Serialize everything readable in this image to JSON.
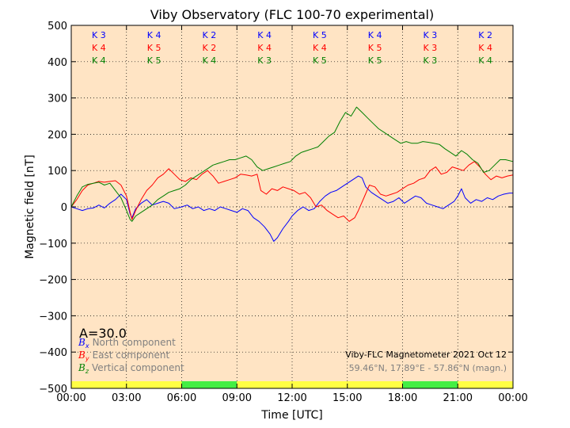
{
  "chart_data": {
    "type": "line",
    "title": "Viby Observatory (FLC 100-70 experimental)",
    "xlabel": "Time [UTC]",
    "ylabel": "Magnetic field [nT]",
    "xlim": [
      0,
      24
    ],
    "ylim": [
      -500,
      500
    ],
    "grid": true,
    "background": "#ffe4c4",
    "x_ticks": [
      {
        "v": 0,
        "label": "00:00"
      },
      {
        "v": 3,
        "label": "03:00"
      },
      {
        "v": 6,
        "label": "06:00"
      },
      {
        "v": 9,
        "label": "09:00"
      },
      {
        "v": 12,
        "label": "12:00"
      },
      {
        "v": 15,
        "label": "15:00"
      },
      {
        "v": 18,
        "label": "18:00"
      },
      {
        "v": 21,
        "label": "21:00"
      },
      {
        "v": 24,
        "label": "00:00"
      }
    ],
    "y_ticks": [
      {
        "v": 500,
        "label": "500"
      },
      {
        "v": 400,
        "label": "400"
      },
      {
        "v": 300,
        "label": "300"
      },
      {
        "v": 200,
        "label": "200"
      },
      {
        "v": 100,
        "label": "100"
      },
      {
        "v": 0,
        "label": "0"
      },
      {
        "v": -100,
        "label": "−100"
      },
      {
        "v": -200,
        "label": "−200"
      },
      {
        "v": -300,
        "label": "−300"
      },
      {
        "v": -400,
        "label": "−400"
      },
      {
        "v": -500,
        "label": "−500"
      }
    ],
    "k_index": {
      "rows": [
        {
          "color": "#0000ff",
          "labels": [
            "K 3",
            "K 4",
            "K 2",
            "K 4",
            "K 5",
            "K 4",
            "K 3",
            "K 2"
          ]
        },
        {
          "color": "#ff0000",
          "labels": [
            "K 4",
            "K 5",
            "K 2",
            "K 4",
            "K 4",
            "K 5",
            "K 3",
            "K 4"
          ]
        },
        {
          "color": "#008000",
          "labels": [
            "K 4",
            "K 5",
            "K 4",
            "K 3",
            "K 5",
            "K 5",
            "K 3",
            "K 4"
          ]
        }
      ]
    },
    "a_index": "A=30.0",
    "legend": {
      "placement": "lower-left",
      "items": [
        {
          "symbol": "B",
          "sub": "x",
          "text": "North component",
          "color": "#0000ff"
        },
        {
          "symbol": "B",
          "sub": "y",
          "text": "East component",
          "color": "#ff0000"
        },
        {
          "symbol": "B",
          "sub": "z",
          "text": "Vertical component",
          "color": "#008000"
        }
      ]
    },
    "info": {
      "line1": "Viby-FLC Magnetometer 2021 Oct 12",
      "line2": "59.46°N, 17.89°E - 57.86°N (magn.)"
    },
    "activity_bar": [
      {
        "from": 0,
        "to": 6,
        "color": "#ffff44"
      },
      {
        "from": 6,
        "to": 9,
        "color": "#44ee44"
      },
      {
        "from": 9,
        "to": 18,
        "color": "#ffff44"
      },
      {
        "from": 18,
        "to": 21,
        "color": "#44ee44"
      },
      {
        "from": 21,
        "to": 24,
        "color": "#ffff44"
      }
    ],
    "series": [
      {
        "name": "Bx North component",
        "color": "#0000ff",
        "points": [
          [
            0,
            0
          ],
          [
            0.3,
            -5
          ],
          [
            0.6,
            -10
          ],
          [
            0.9,
            -5
          ],
          [
            1.2,
            -3
          ],
          [
            1.5,
            5
          ],
          [
            1.8,
            -3
          ],
          [
            2.1,
            10
          ],
          [
            2.4,
            20
          ],
          [
            2.7,
            35
          ],
          [
            3,
            20
          ],
          [
            3.2,
            -20
          ],
          [
            3.3,
            -30
          ],
          [
            3.5,
            -5
          ],
          [
            3.8,
            10
          ],
          [
            4.1,
            20
          ],
          [
            4.4,
            5
          ],
          [
            4.7,
            10
          ],
          [
            5,
            15
          ],
          [
            5.3,
            10
          ],
          [
            5.6,
            -5
          ],
          [
            6,
            0
          ],
          [
            6.3,
            5
          ],
          [
            6.6,
            -5
          ],
          [
            6.9,
            0
          ],
          [
            7.2,
            -10
          ],
          [
            7.5,
            -5
          ],
          [
            7.8,
            -10
          ],
          [
            8.1,
            0
          ],
          [
            8.4,
            -5
          ],
          [
            8.7,
            -10
          ],
          [
            9,
            -15
          ],
          [
            9.3,
            -5
          ],
          [
            9.6,
            -10
          ],
          [
            9.9,
            -30
          ],
          [
            10.2,
            -40
          ],
          [
            10.5,
            -55
          ],
          [
            10.8,
            -75
          ],
          [
            11,
            -95
          ],
          [
            11.2,
            -85
          ],
          [
            11.5,
            -60
          ],
          [
            11.8,
            -40
          ],
          [
            12,
            -25
          ],
          [
            12.3,
            -10
          ],
          [
            12.6,
            0
          ],
          [
            12.9,
            -10
          ],
          [
            13.2,
            -5
          ],
          [
            13.5,
            15
          ],
          [
            13.8,
            30
          ],
          [
            14.1,
            40
          ],
          [
            14.4,
            45
          ],
          [
            14.7,
            55
          ],
          [
            15,
            65
          ],
          [
            15.3,
            75
          ],
          [
            15.6,
            85
          ],
          [
            15.8,
            80
          ],
          [
            16,
            55
          ],
          [
            16.3,
            40
          ],
          [
            16.6,
            30
          ],
          [
            16.9,
            20
          ],
          [
            17.2,
            10
          ],
          [
            17.5,
            15
          ],
          [
            17.8,
            25
          ],
          [
            18.1,
            10
          ],
          [
            18.4,
            20
          ],
          [
            18.7,
            30
          ],
          [
            19,
            25
          ],
          [
            19.3,
            10
          ],
          [
            19.6,
            5
          ],
          [
            19.9,
            0
          ],
          [
            20.2,
            -5
          ],
          [
            20.5,
            5
          ],
          [
            20.8,
            15
          ],
          [
            21,
            30
          ],
          [
            21.2,
            50
          ],
          [
            21.4,
            25
          ],
          [
            21.7,
            10
          ],
          [
            22,
            20
          ],
          [
            22.3,
            15
          ],
          [
            22.6,
            25
          ],
          [
            22.9,
            20
          ],
          [
            23.2,
            30
          ],
          [
            23.5,
            35
          ],
          [
            23.8,
            38
          ],
          [
            24,
            38
          ]
        ]
      },
      {
        "name": "By East component",
        "color": "#ff0000",
        "points": [
          [
            0,
            0
          ],
          [
            0.3,
            20
          ],
          [
            0.6,
            45
          ],
          [
            0.9,
            60
          ],
          [
            1.2,
            65
          ],
          [
            1.5,
            70
          ],
          [
            1.8,
            68
          ],
          [
            2.1,
            70
          ],
          [
            2.4,
            72
          ],
          [
            2.7,
            60
          ],
          [
            3,
            30
          ],
          [
            3.2,
            -15
          ],
          [
            3.3,
            -35
          ],
          [
            3.5,
            -10
          ],
          [
            3.8,
            20
          ],
          [
            4.1,
            45
          ],
          [
            4.4,
            60
          ],
          [
            4.7,
            80
          ],
          [
            5,
            90
          ],
          [
            5.3,
            105
          ],
          [
            5.6,
            90
          ],
          [
            5.9,
            75
          ],
          [
            6.2,
            70
          ],
          [
            6.5,
            80
          ],
          [
            6.8,
            75
          ],
          [
            7.1,
            90
          ],
          [
            7.4,
            100
          ],
          [
            7.7,
            85
          ],
          [
            8,
            65
          ],
          [
            8.3,
            70
          ],
          [
            8.6,
            75
          ],
          [
            8.9,
            80
          ],
          [
            9.2,
            90
          ],
          [
            9.5,
            88
          ],
          [
            9.8,
            85
          ],
          [
            10.1,
            90
          ],
          [
            10.3,
            45
          ],
          [
            10.6,
            35
          ],
          [
            10.9,
            50
          ],
          [
            11.2,
            45
          ],
          [
            11.5,
            55
          ],
          [
            11.8,
            50
          ],
          [
            12.1,
            45
          ],
          [
            12.4,
            35
          ],
          [
            12.7,
            40
          ],
          [
            13,
            25
          ],
          [
            13.3,
            0
          ],
          [
            13.6,
            5
          ],
          [
            13.9,
            -10
          ],
          [
            14.2,
            -20
          ],
          [
            14.5,
            -30
          ],
          [
            14.8,
            -25
          ],
          [
            15.1,
            -40
          ],
          [
            15.4,
            -30
          ],
          [
            15.6,
            -10
          ],
          [
            15.9,
            25
          ],
          [
            16.2,
            60
          ],
          [
            16.5,
            55
          ],
          [
            16.8,
            35
          ],
          [
            17.1,
            30
          ],
          [
            17.4,
            35
          ],
          [
            17.7,
            40
          ],
          [
            18,
            50
          ],
          [
            18.3,
            60
          ],
          [
            18.6,
            65
          ],
          [
            18.9,
            75
          ],
          [
            19.2,
            80
          ],
          [
            19.5,
            100
          ],
          [
            19.8,
            110
          ],
          [
            20.1,
            90
          ],
          [
            20.4,
            95
          ],
          [
            20.7,
            110
          ],
          [
            21,
            105
          ],
          [
            21.3,
            100
          ],
          [
            21.6,
            115
          ],
          [
            21.9,
            125
          ],
          [
            22.2,
            110
          ],
          [
            22.5,
            90
          ],
          [
            22.8,
            75
          ],
          [
            23.1,
            85
          ],
          [
            23.4,
            80
          ],
          [
            23.7,
            85
          ],
          [
            24,
            88
          ]
        ]
      },
      {
        "name": "Bz Vertical component",
        "color": "#008000",
        "points": [
          [
            0,
            0
          ],
          [
            0.3,
            30
          ],
          [
            0.6,
            55
          ],
          [
            0.9,
            62
          ],
          [
            1.2,
            65
          ],
          [
            1.5,
            68
          ],
          [
            1.8,
            60
          ],
          [
            2.1,
            65
          ],
          [
            2.4,
            45
          ],
          [
            2.7,
            25
          ],
          [
            3,
            -10
          ],
          [
            3.2,
            -35
          ],
          [
            3.3,
            -40
          ],
          [
            3.5,
            -25
          ],
          [
            3.8,
            -15
          ],
          [
            4.1,
            -5
          ],
          [
            4.4,
            5
          ],
          [
            4.7,
            20
          ],
          [
            5,
            30
          ],
          [
            5.3,
            40
          ],
          [
            5.6,
            45
          ],
          [
            5.9,
            50
          ],
          [
            6.2,
            60
          ],
          [
            6.5,
            75
          ],
          [
            6.8,
            85
          ],
          [
            7.1,
            95
          ],
          [
            7.4,
            105
          ],
          [
            7.7,
            115
          ],
          [
            8,
            120
          ],
          [
            8.3,
            125
          ],
          [
            8.6,
            130
          ],
          [
            8.9,
            130
          ],
          [
            9.2,
            135
          ],
          [
            9.5,
            140
          ],
          [
            9.8,
            130
          ],
          [
            10.1,
            110
          ],
          [
            10.4,
            100
          ],
          [
            10.7,
            105
          ],
          [
            11,
            110
          ],
          [
            11.3,
            115
          ],
          [
            11.6,
            120
          ],
          [
            11.9,
            125
          ],
          [
            12.2,
            140
          ],
          [
            12.5,
            150
          ],
          [
            12.8,
            155
          ],
          [
            13.1,
            160
          ],
          [
            13.4,
            165
          ],
          [
            13.7,
            180
          ],
          [
            14,
            195
          ],
          [
            14.3,
            205
          ],
          [
            14.6,
            235
          ],
          [
            14.9,
            260
          ],
          [
            15.2,
            250
          ],
          [
            15.5,
            275
          ],
          [
            15.8,
            260
          ],
          [
            16.1,
            245
          ],
          [
            16.4,
            230
          ],
          [
            16.7,
            215
          ],
          [
            17,
            205
          ],
          [
            17.3,
            195
          ],
          [
            17.6,
            185
          ],
          [
            17.9,
            175
          ],
          [
            18.2,
            180
          ],
          [
            18.5,
            175
          ],
          [
            18.8,
            175
          ],
          [
            19.1,
            180
          ],
          [
            19.4,
            178
          ],
          [
            19.7,
            175
          ],
          [
            20,
            172
          ],
          [
            20.3,
            160
          ],
          [
            20.6,
            150
          ],
          [
            20.9,
            140
          ],
          [
            21.2,
            155
          ],
          [
            21.5,
            145
          ],
          [
            21.8,
            130
          ],
          [
            22.1,
            120
          ],
          [
            22.4,
            95
          ],
          [
            22.7,
            100
          ],
          [
            23,
            115
          ],
          [
            23.3,
            130
          ],
          [
            23.6,
            130
          ],
          [
            24,
            125
          ]
        ]
      }
    ]
  }
}
